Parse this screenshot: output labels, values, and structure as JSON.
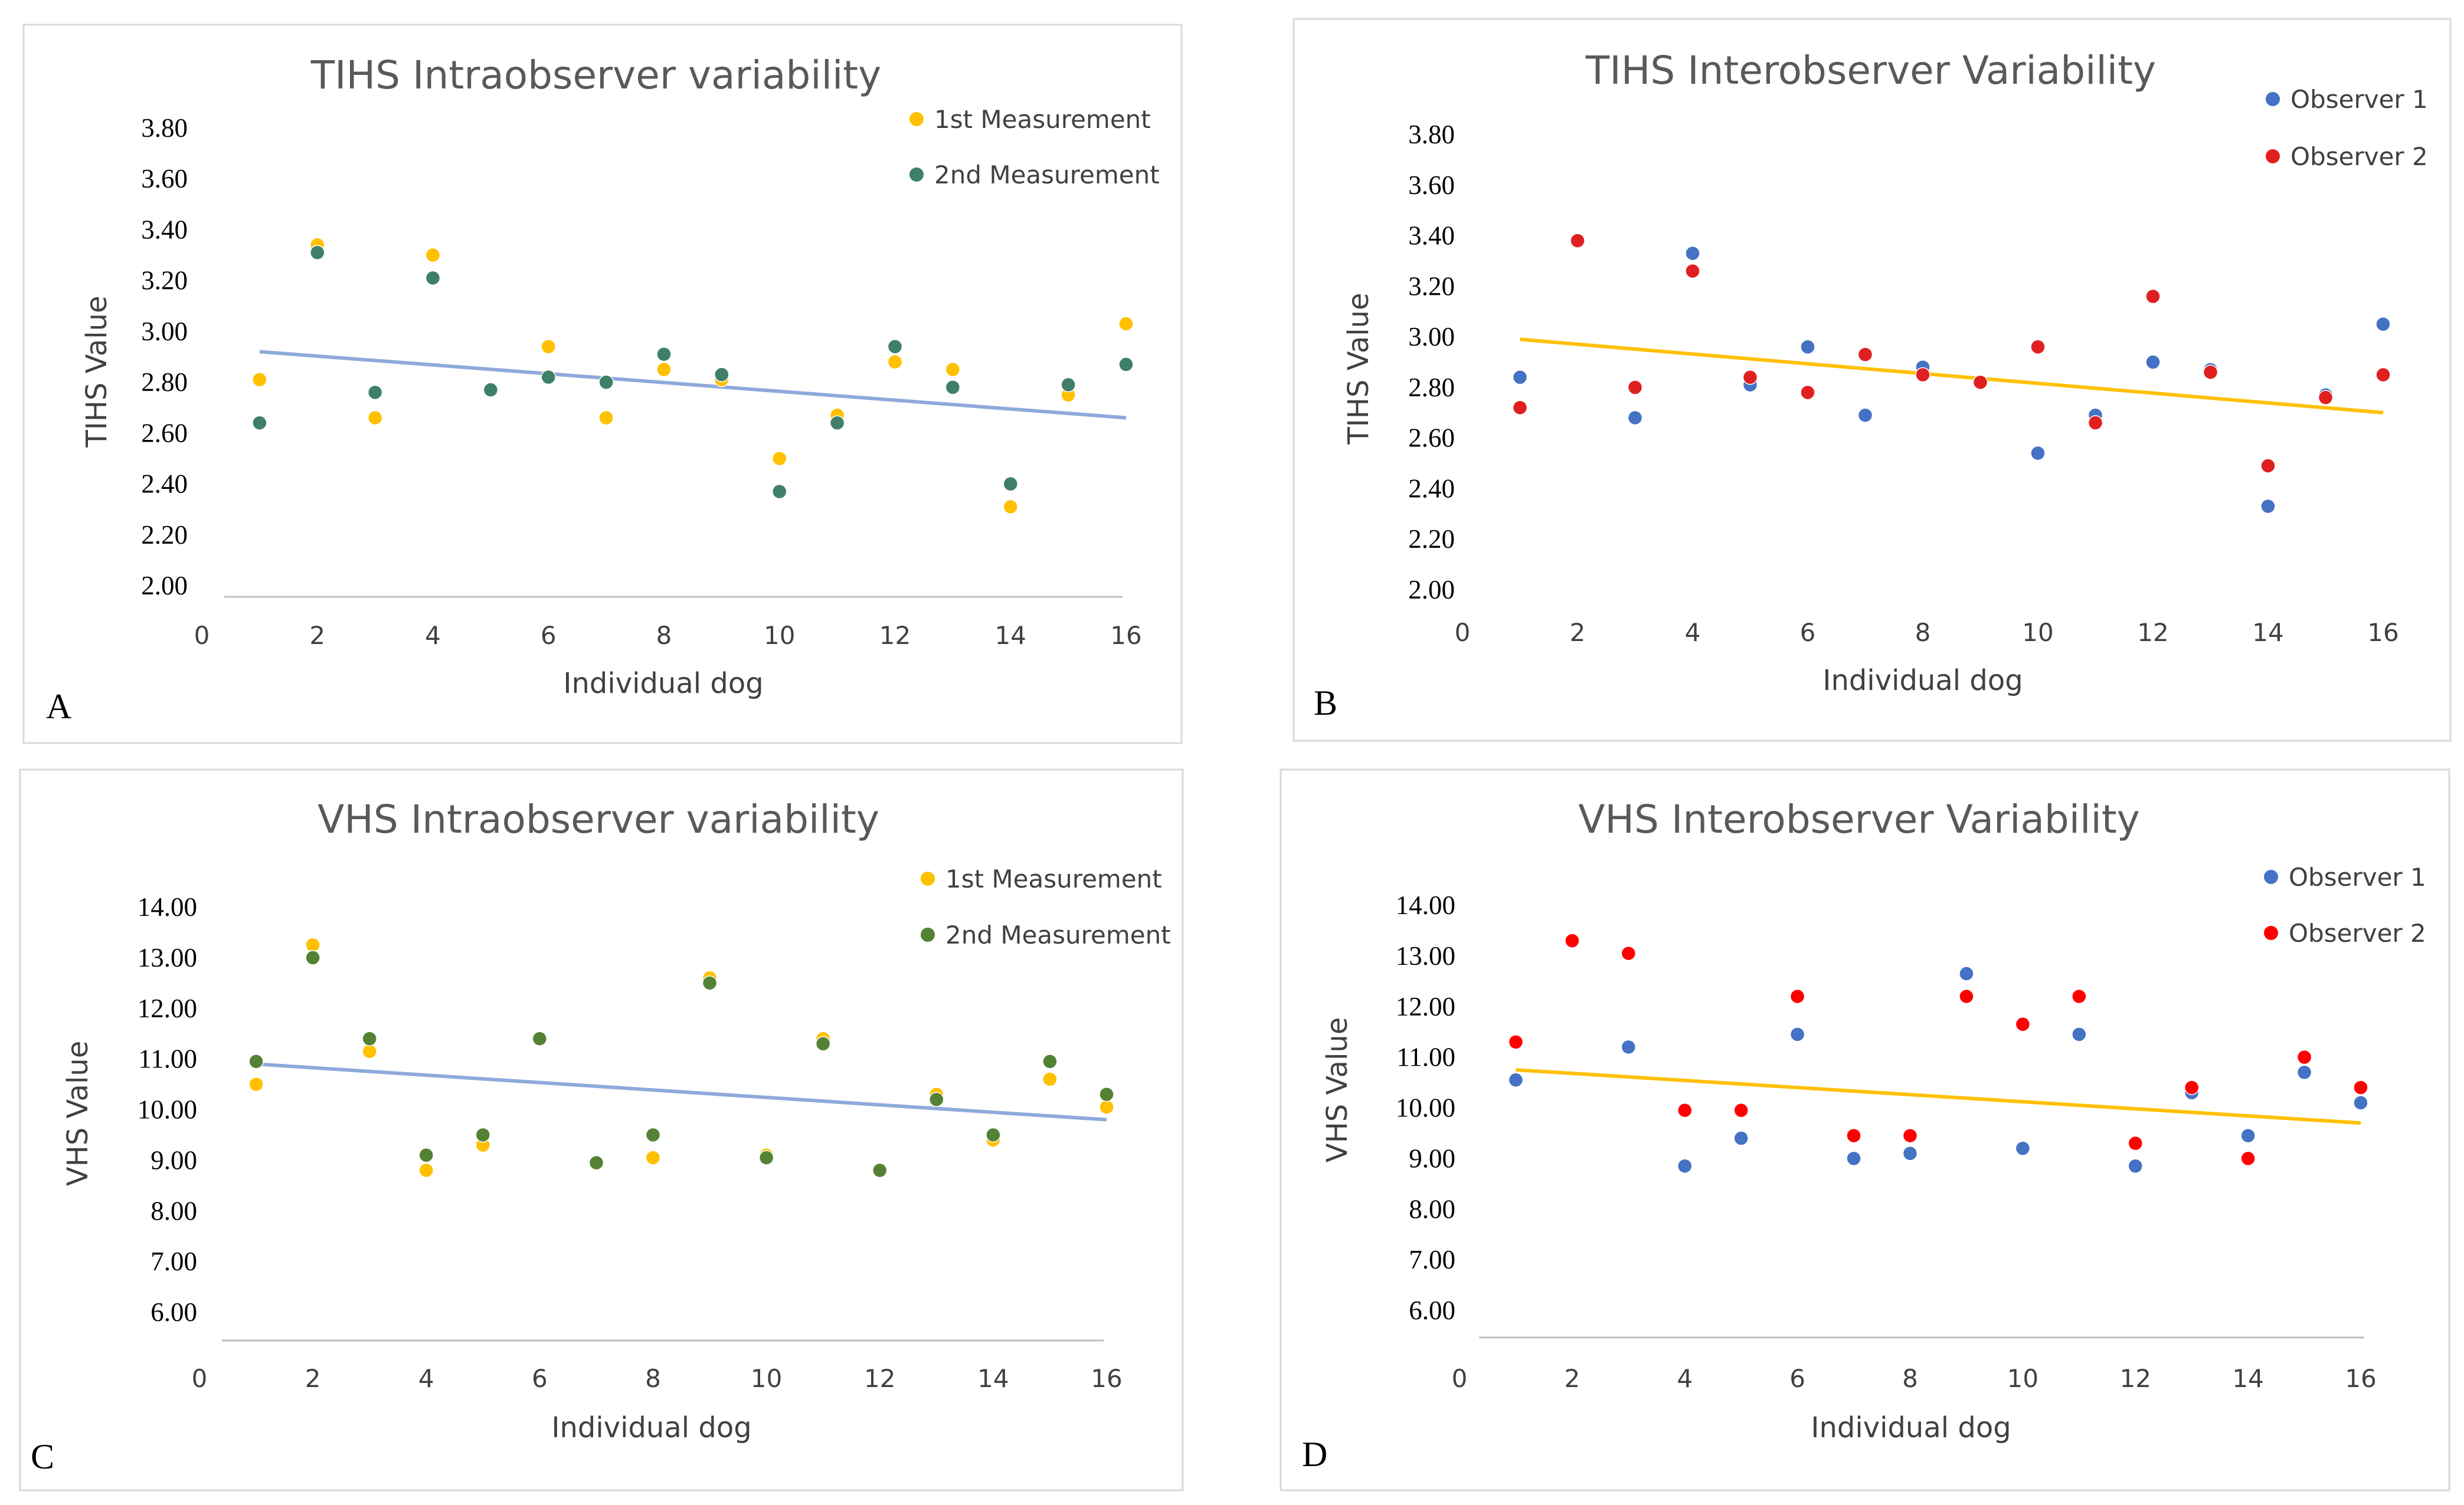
{
  "chart_data": [
    {
      "type": "scatter",
      "panel_label": "A",
      "title": "TIHS Intraobserver variability",
      "xlabel": "Individual dog",
      "ylabel": "TIHS Value",
      "xlim": [
        0,
        16
      ],
      "ylim": [
        2.0,
        3.8
      ],
      "x_ticks": [
        "0",
        "2",
        "4",
        "6",
        "8",
        "10",
        "12",
        "14",
        "16"
      ],
      "y_ticks": [
        "2.00",
        "2.20",
        "2.40",
        "2.60",
        "2.80",
        "3.00",
        "3.20",
        "3.40",
        "3.60",
        "3.80"
      ],
      "legend_position": "top-right",
      "series": [
        {
          "name": "1st Measurement",
          "color": "#FFC000",
          "x": [
            1,
            2,
            3,
            4,
            5,
            6,
            7,
            8,
            9,
            10,
            11,
            12,
            13,
            14,
            15,
            16
          ],
          "y": [
            2.81,
            3.34,
            2.66,
            3.3,
            2.77,
            2.94,
            2.66,
            2.85,
            2.81,
            2.5,
            2.67,
            2.88,
            2.85,
            2.31,
            2.75,
            3.03
          ]
        },
        {
          "name": "2nd Measurement",
          "color": "#3F7F6A",
          "x": [
            1,
            2,
            3,
            4,
            5,
            6,
            7,
            8,
            9,
            10,
            11,
            12,
            13,
            14,
            15,
            16
          ],
          "y": [
            2.64,
            3.31,
            2.76,
            3.21,
            2.77,
            2.82,
            2.8,
            2.91,
            2.83,
            2.37,
            2.64,
            2.94,
            2.78,
            2.4,
            2.79,
            2.87
          ]
        }
      ],
      "trendline": {
        "color": "#8EA9DB",
        "x": [
          1,
          16
        ],
        "y": [
          2.92,
          2.66
        ]
      }
    },
    {
      "type": "scatter",
      "panel_label": "B",
      "title": "TIHS Interobserver Variability",
      "xlabel": "Individual dog",
      "ylabel": "TIHS Value",
      "xlim": [
        0,
        16
      ],
      "ylim": [
        2.0,
        3.8
      ],
      "x_ticks": [
        "0",
        "2",
        "4",
        "6",
        "8",
        "10",
        "12",
        "14",
        "16"
      ],
      "y_ticks": [
        "2.00",
        "2.20",
        "2.40",
        "2.60",
        "2.80",
        "3.00",
        "3.20",
        "3.40",
        "3.60",
        "3.80"
      ],
      "legend_position": "top-right",
      "series": [
        {
          "name": "Observer 1",
          "color": "#4472C4",
          "x": [
            1,
            2,
            3,
            4,
            5,
            6,
            7,
            8,
            9,
            10,
            11,
            12,
            13,
            14,
            15,
            16
          ],
          "y": [
            2.84,
            3.38,
            2.68,
            3.33,
            2.81,
            2.96,
            2.69,
            2.88,
            2.82,
            2.54,
            2.69,
            2.9,
            2.87,
            2.33,
            2.77,
            3.05
          ]
        },
        {
          "name": "Observer 2",
          "color": "#E02020",
          "x": [
            1,
            2,
            3,
            4,
            5,
            6,
            7,
            8,
            9,
            10,
            11,
            12,
            13,
            14,
            15,
            16
          ],
          "y": [
            2.72,
            3.38,
            2.8,
            3.26,
            2.84,
            2.78,
            2.93,
            2.85,
            2.82,
            2.96,
            2.66,
            3.16,
            2.86,
            2.49,
            2.76,
            2.85
          ]
        }
      ],
      "trendline": {
        "color": "#FFC000",
        "x": [
          1,
          16
        ],
        "y": [
          2.99,
          2.7
        ]
      }
    },
    {
      "type": "scatter",
      "panel_label": "C",
      "title": "VHS Intraobserver variability",
      "xlabel": "Individual dog",
      "ylabel": "VHS Value",
      "xlim": [
        0,
        16
      ],
      "ylim": [
        6.0,
        14.0
      ],
      "x_ticks": [
        "0",
        "2",
        "4",
        "6",
        "8",
        "10",
        "12",
        "14",
        "16"
      ],
      "y_ticks": [
        "6.00",
        "7.00",
        "8.00",
        "9.00",
        "10.00",
        "11.00",
        "12.00",
        "13.00",
        "14.00"
      ],
      "legend_position": "top-right",
      "series": [
        {
          "name": "1st Measurement",
          "color": "#FFC000",
          "x": [
            1,
            2,
            3,
            4,
            5,
            6,
            7,
            8,
            9,
            10,
            11,
            12,
            13,
            14,
            15,
            16
          ],
          "y": [
            10.5,
            13.25,
            11.15,
            8.8,
            9.3,
            11.4,
            8.95,
            9.05,
            12.6,
            9.1,
            11.4,
            8.8,
            10.3,
            9.4,
            10.6,
            10.05
          ]
        },
        {
          "name": "2nd Measurement",
          "color": "#548235",
          "x": [
            1,
            2,
            3,
            4,
            5,
            6,
            7,
            8,
            9,
            10,
            11,
            12,
            13,
            14,
            15,
            16
          ],
          "y": [
            10.95,
            13.0,
            11.4,
            9.1,
            9.5,
            11.4,
            8.95,
            9.5,
            12.5,
            9.05,
            11.3,
            8.8,
            10.2,
            9.5,
            10.95,
            10.3
          ]
        }
      ],
      "trendline": {
        "color": "#8EA9DB",
        "x": [
          1,
          16
        ],
        "y": [
          10.9,
          9.8
        ]
      }
    },
    {
      "type": "scatter",
      "panel_label": "D",
      "title": "VHS Interobserver Variability",
      "xlabel": "Individual dog",
      "ylabel": "VHS Value",
      "xlim": [
        0,
        16
      ],
      "ylim": [
        6.0,
        14.0
      ],
      "x_ticks": [
        "0",
        "2",
        "4",
        "6",
        "8",
        "10",
        "12",
        "14",
        "16"
      ],
      "y_ticks": [
        "6.00",
        "7.00",
        "8.00",
        "9.00",
        "10.00",
        "11.00",
        "12.00",
        "13.00",
        "14.00"
      ],
      "legend_position": "top-right",
      "series": [
        {
          "name": "Observer 1",
          "color": "#4472C4",
          "x": [
            1,
            2,
            3,
            4,
            5,
            6,
            7,
            8,
            9,
            10,
            11,
            12,
            13,
            14,
            15,
            16
          ],
          "y": [
            10.55,
            13.3,
            11.2,
            8.85,
            9.4,
            11.45,
            9.0,
            9.1,
            12.65,
            9.2,
            11.45,
            8.85,
            10.3,
            9.45,
            10.7,
            10.1
          ]
        },
        {
          "name": "Observer 2",
          "color": "#FF0000",
          "x": [
            1,
            2,
            3,
            4,
            5,
            6,
            7,
            8,
            9,
            10,
            11,
            12,
            13,
            14,
            15,
            16
          ],
          "y": [
            11.3,
            13.3,
            13.05,
            9.95,
            9.95,
            12.2,
            9.45,
            9.45,
            12.2,
            11.65,
            12.2,
            9.3,
            10.4,
            9.0,
            11.0,
            10.4
          ]
        }
      ],
      "trendline": {
        "color": "#FFC000",
        "x": [
          1,
          16
        ],
        "y": [
          10.75,
          9.7
        ]
      }
    }
  ]
}
